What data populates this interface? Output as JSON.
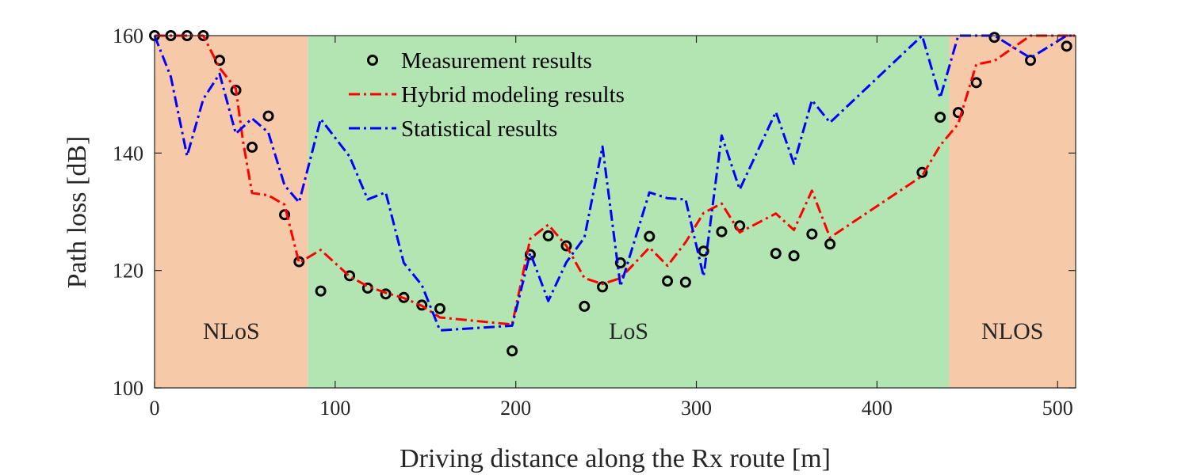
{
  "chart_data": {
    "type": "line",
    "xlabel": "Driving distance along the Rx route [m]",
    "ylabel": "Path loss [dB]",
    "xlim": [
      0,
      510
    ],
    "ylim": [
      100,
      160
    ],
    "xticks": [
      0,
      100,
      200,
      300,
      400,
      500
    ],
    "yticks": [
      100,
      120,
      140,
      160
    ],
    "grid": false,
    "legend_position": "top-center",
    "regions": [
      {
        "label": "NLoS",
        "x_start": 0,
        "x_end": 85,
        "color": "#f6c9a8"
      },
      {
        "label": "LoS",
        "x_start": 85,
        "x_end": 440,
        "color": "#b3e5b2"
      },
      {
        "label": "NLOS",
        "x_start": 440,
        "x_end": 510,
        "color": "#f6c9a8"
      }
    ],
    "series": [
      {
        "name": "Measurement results",
        "style": "circle-markers",
        "color": "#000000",
        "x": [
          0,
          9,
          18,
          27,
          36,
          45,
          54,
          63,
          72,
          80,
          92,
          108,
          118,
          128,
          138,
          148,
          158,
          198,
          208,
          218,
          228,
          238,
          248,
          258,
          274,
          284,
          294,
          304,
          314,
          324,
          344,
          354,
          364,
          374,
          425,
          435,
          445,
          455,
          465,
          485,
          505
        ],
        "y": [
          160,
          160,
          160,
          160,
          155.8,
          150.7,
          141,
          146.3,
          129.5,
          121.5,
          116.5,
          119.1,
          117,
          116,
          115.4,
          114.1,
          113.5,
          106.3,
          122.7,
          125.9,
          124.2,
          113.9,
          117.2,
          121.3,
          125.8,
          118.2,
          118,
          123.3,
          126.6,
          127.6,
          122.9,
          122.5,
          126.2,
          124.5,
          136.7,
          146.1,
          146.9,
          152,
          159.7,
          155.8,
          158.2
        ]
      },
      {
        "name": "Hybrid modeling results",
        "style": "dash-dot",
        "color": "#ff0000",
        "x": [
          0,
          9,
          18,
          27,
          36,
          45,
          49,
          54,
          63,
          72,
          80,
          92,
          108,
          118,
          128,
          138,
          148,
          158,
          198,
          203,
          208,
          218,
          228,
          238,
          248,
          258,
          274,
          284,
          294,
          304,
          314,
          324,
          344,
          354,
          364,
          374,
          425,
          435,
          445,
          455,
          465,
          485,
          505,
          510
        ],
        "y": [
          160,
          160,
          160,
          160,
          154.5,
          151,
          142,
          133.2,
          132.8,
          131.2,
          121.3,
          123.5,
          119,
          117.3,
          116.2,
          115.3,
          114,
          112,
          110.8,
          118,
          125.4,
          127.8,
          124.2,
          118.7,
          117.7,
          118.7,
          123.9,
          120.8,
          124.8,
          129.8,
          131.4,
          126.5,
          129.7,
          126.9,
          133.6,
          125.6,
          136.1,
          141.3,
          145,
          155.1,
          155.7,
          160,
          160,
          160
        ]
      },
      {
        "name": "Statistical results",
        "style": "dash-dot",
        "color": "#0000ff",
        "x": [
          0,
          9,
          18,
          27,
          36,
          45,
          54,
          63,
          72,
          80,
          92,
          108,
          118,
          128,
          138,
          148,
          158,
          198,
          208,
          218,
          228,
          238,
          248,
          258,
          274,
          284,
          294,
          304,
          314,
          324,
          344,
          354,
          364,
          374,
          425,
          435,
          445,
          455,
          465,
          485,
          505,
          510
        ],
        "y": [
          160,
          153,
          139.5,
          149.2,
          153.5,
          143.3,
          145.9,
          143.5,
          134.5,
          131.6,
          145.8,
          139.4,
          132.1,
          133.3,
          121.3,
          117.5,
          109.8,
          110.6,
          123,
          114.8,
          121.4,
          125.6,
          141.1,
          117.3,
          133.3,
          132.3,
          132.1,
          119,
          143,
          133.8,
          147,
          138.2,
          149,
          145.2,
          160,
          149.4,
          160,
          160,
          160,
          156.2,
          160,
          160
        ]
      }
    ]
  }
}
